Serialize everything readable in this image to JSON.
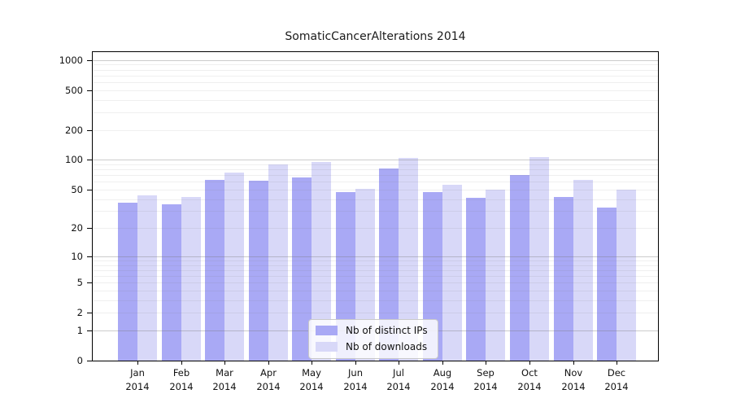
{
  "chart_data": {
    "type": "bar",
    "title": "SomaticCancerAlterations 2014",
    "categories": [
      "Jan 2014",
      "Feb 2014",
      "Mar 2014",
      "Apr 2014",
      "May 2014",
      "Jun 2014",
      "Jul 2014",
      "Aug 2014",
      "Sep 2014",
      "Oct 2014",
      "Nov 2014",
      "Dec 2014"
    ],
    "series": [
      {
        "name": "Nb of distinct IPs",
        "color": "#a9a9f5",
        "values": [
          37,
          35,
          63,
          62,
          66,
          47,
          81,
          47,
          41,
          70,
          42,
          33
        ]
      },
      {
        "name": "Nb of downloads",
        "color": "#d8d8f8",
        "values": [
          44,
          42,
          75,
          90,
          96,
          51,
          104,
          56,
          50,
          106,
          63,
          50
        ]
      }
    ],
    "xlabel": "",
    "ylabel": "",
    "yscale": "log1p",
    "ylim": [
      0,
      1199
    ],
    "yticks": [
      0,
      1,
      2,
      5,
      10,
      20,
      50,
      100,
      200,
      500,
      1000
    ],
    "grid": true,
    "grid_major_at": [
      1,
      10,
      100,
      1000
    ],
    "legend_position": "inside-lower-center",
    "colors": {
      "axis": "#000000",
      "grid_major": "#c6c6c6",
      "grid_minor": "#ececec",
      "background": "#ffffff"
    }
  }
}
